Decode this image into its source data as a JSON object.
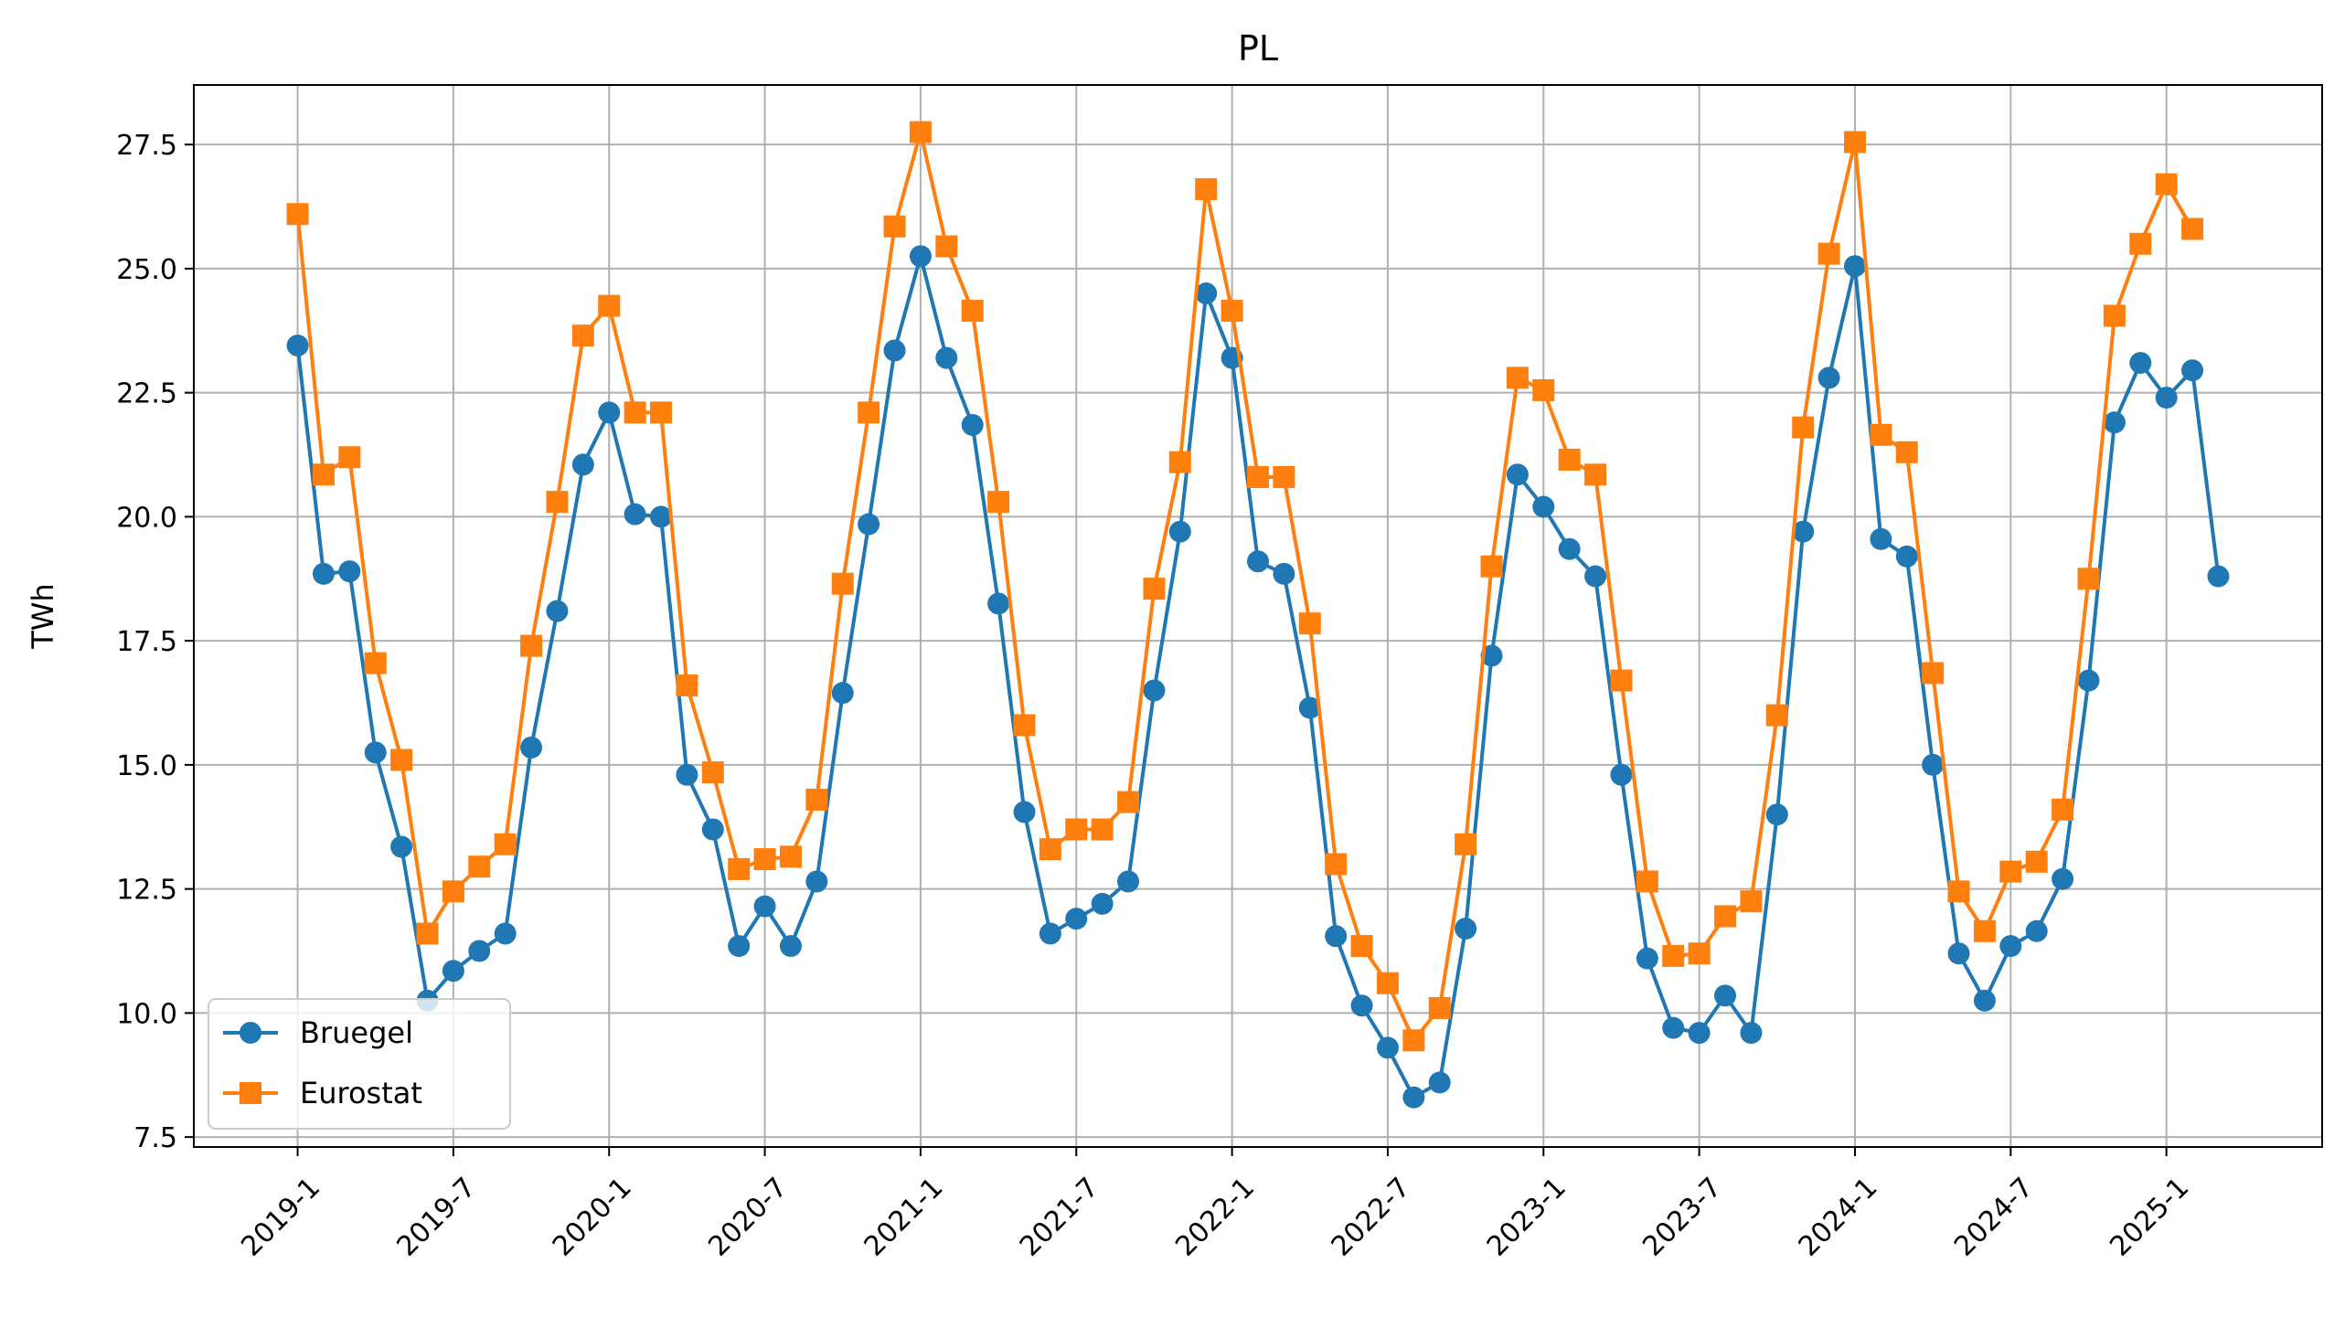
{
  "chart_data": {
    "type": "line",
    "title": "PL",
    "xlabel": "",
    "ylabel": "TWh",
    "xlim_months": [
      -4,
      78
    ],
    "ylim": [
      7.3,
      28.7
    ],
    "y_ticks": [
      7.5,
      10.0,
      12.5,
      15.0,
      17.5,
      20.0,
      22.5,
      25.0,
      27.5
    ],
    "y_tick_labels": [
      "7.5",
      "10.0",
      "12.5",
      "15.0",
      "17.5",
      "20.0",
      "22.5",
      "25.0",
      "27.5"
    ],
    "x_ticks": [
      0,
      6,
      12,
      18,
      24,
      30,
      36,
      42,
      48,
      54,
      60,
      66,
      72
    ],
    "x_tick_labels": [
      "2019-1",
      "2019-7",
      "2020-1",
      "2020-7",
      "2021-1",
      "2021-7",
      "2022-1",
      "2022-7",
      "2023-1",
      "2023-7",
      "2024-1",
      "2024-7",
      "2025-1"
    ],
    "grid": true,
    "legend_position": "lower-left",
    "series": [
      {
        "name": "Bruegel",
        "color": "#1f77b4",
        "marker": "circle",
        "values": [
          23.45,
          18.85,
          18.9,
          15.25,
          13.35,
          10.25,
          10.85,
          11.25,
          11.6,
          15.35,
          18.1,
          21.05,
          22.1,
          20.05,
          20.0,
          14.8,
          13.7,
          11.35,
          12.15,
          11.35,
          12.65,
          16.45,
          19.85,
          23.35,
          25.25,
          23.2,
          21.85,
          18.25,
          14.05,
          11.6,
          11.9,
          12.2,
          12.65,
          16.5,
          19.7,
          24.5,
          23.2,
          19.1,
          18.85,
          16.15,
          11.55,
          10.15,
          9.3,
          8.3,
          8.6,
          11.7,
          17.2,
          20.85,
          20.2,
          19.35,
          18.8,
          14.8,
          11.1,
          9.7,
          9.6,
          10.35,
          9.6,
          14.0,
          19.7,
          22.8,
          25.05,
          19.55,
          19.2,
          15.0,
          11.2,
          10.25,
          11.35,
          11.65,
          12.7,
          16.7,
          21.9,
          23.1,
          22.4,
          22.95,
          18.8
        ]
      },
      {
        "name": "Eurostat",
        "color": "#ff7f0e",
        "marker": "square",
        "values": [
          26.1,
          20.85,
          21.2,
          17.05,
          15.1,
          11.6,
          12.45,
          12.95,
          13.4,
          17.4,
          20.3,
          23.65,
          24.25,
          22.1,
          22.1,
          16.6,
          14.85,
          12.9,
          13.1,
          13.15,
          14.3,
          18.65,
          22.1,
          25.85,
          27.75,
          25.45,
          24.15,
          20.3,
          15.8,
          13.3,
          13.7,
          13.7,
          14.25,
          18.55,
          21.1,
          26.6,
          24.15,
          20.8,
          20.8,
          17.85,
          13.0,
          11.35,
          10.6,
          9.45,
          10.1,
          13.4,
          19.0,
          22.8,
          22.55,
          21.15,
          20.85,
          16.7,
          12.65,
          11.15,
          11.2,
          11.95,
          12.25,
          16.0,
          21.8,
          25.3,
          27.55,
          21.65,
          21.3,
          16.85,
          12.45,
          11.65,
          12.85,
          13.05,
          14.1,
          18.75,
          24.05,
          25.5,
          26.7,
          25.8
        ]
      }
    ]
  }
}
